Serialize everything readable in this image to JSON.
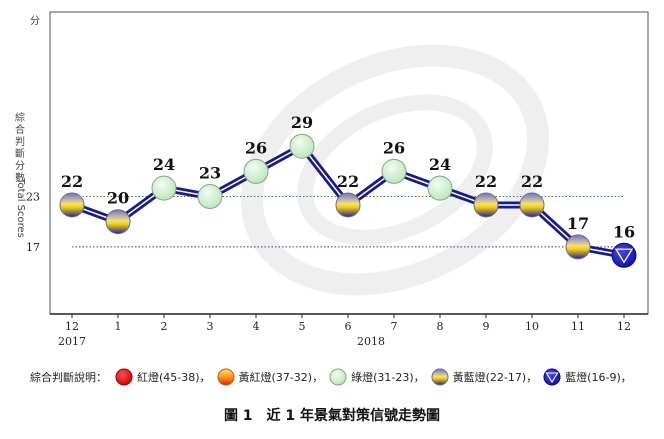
{
  "chart_data": {
    "type": "line",
    "title": "圖 1　近 1 年景氣對策信號走勢圖",
    "ylabel_cn": "綜合判斷分數",
    "ylabel_en": "Total Scores",
    "y_axis_unit": "分",
    "ylim": [
      9,
      45
    ],
    "yticks": [
      17,
      23
    ],
    "reference_lines": [
      {
        "value": 23,
        "color": "#2e8b2e"
      },
      {
        "value": 17,
        "color": "#3030a0"
      }
    ],
    "categories": [
      "12",
      "1",
      "2",
      "3",
      "4",
      "5",
      "6",
      "7",
      "8",
      "9",
      "10",
      "11",
      "12"
    ],
    "years": [
      {
        "label": "2017",
        "index": 0
      },
      {
        "label": "2018",
        "index": 6.5
      }
    ],
    "series": [
      {
        "values": [
          22,
          20,
          24,
          23,
          26,
          29,
          22,
          26,
          24,
          22,
          22,
          17,
          16
        ],
        "signals": [
          "yellow-blue",
          "yellow-blue",
          "green",
          "green",
          "green",
          "green",
          "yellow-blue",
          "green",
          "green",
          "yellow-blue",
          "yellow-blue",
          "yellow-blue",
          "blue"
        ]
      }
    ],
    "legend": {
      "label": "綜合判斷說明：",
      "items": [
        {
          "signal": "red",
          "text": "紅燈(45-38)，"
        },
        {
          "signal": "yellow-red",
          "text": "黃紅燈(37-32)，"
        },
        {
          "signal": "green",
          "text": "綠燈(31-23)，"
        },
        {
          "signal": "yellow-blue",
          "text": "黃藍燈(22-17)，"
        },
        {
          "signal": "blue",
          "text": "藍燈(16-9)，"
        }
      ]
    },
    "colors": {
      "line": "#1a1a8c",
      "line_inner": "#ffffff",
      "red": "#e00000",
      "yellow": "#f5d000",
      "green": "#c8ecc8",
      "blue": "#1c1cc0"
    }
  }
}
